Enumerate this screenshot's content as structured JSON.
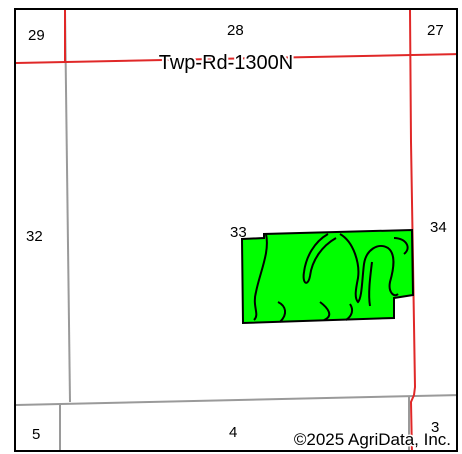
{
  "map": {
    "road_label": "Twp-Rd-1300N",
    "copyright": "©2025 AgriData, Inc.",
    "sections": {
      "s29": "29",
      "s28": "28",
      "s27": "27",
      "s32": "32",
      "s33": "33",
      "s34": "34",
      "s5": "5",
      "s4": "4",
      "s3": "3"
    },
    "colors": {
      "field_fill": "#00ff00",
      "road": "#e02828",
      "section_line": "#9a9a9a",
      "boundary": "#000000"
    }
  }
}
